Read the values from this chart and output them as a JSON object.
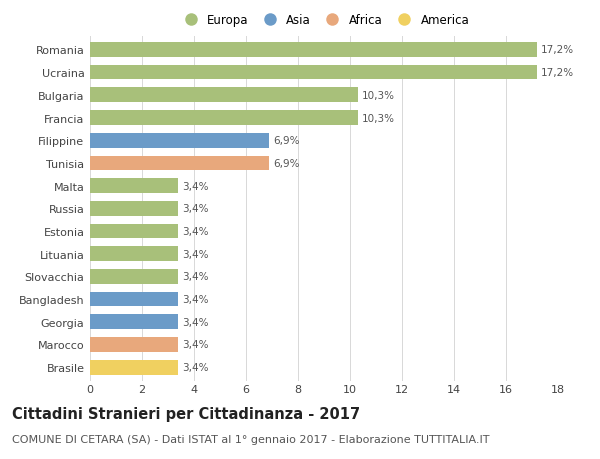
{
  "countries": [
    "Romania",
    "Ucraina",
    "Bulgaria",
    "Francia",
    "Filippine",
    "Tunisia",
    "Malta",
    "Russia",
    "Estonia",
    "Lituania",
    "Slovacchia",
    "Bangladesh",
    "Georgia",
    "Marocco",
    "Brasile"
  ],
  "values": [
    17.2,
    17.2,
    10.3,
    10.3,
    6.9,
    6.9,
    3.4,
    3.4,
    3.4,
    3.4,
    3.4,
    3.4,
    3.4,
    3.4,
    3.4
  ],
  "labels": [
    "17,2%",
    "17,2%",
    "10,3%",
    "10,3%",
    "6,9%",
    "6,9%",
    "3,4%",
    "3,4%",
    "3,4%",
    "3,4%",
    "3,4%",
    "3,4%",
    "3,4%",
    "3,4%",
    "3,4%"
  ],
  "continents": [
    "Europa",
    "Europa",
    "Europa",
    "Europa",
    "Asia",
    "Africa",
    "Europa",
    "Europa",
    "Europa",
    "Europa",
    "Europa",
    "Asia",
    "Asia",
    "Africa",
    "America"
  ],
  "continent_colors": {
    "Europa": "#a8c07a",
    "Asia": "#6b9bc8",
    "Africa": "#e8a87c",
    "America": "#f0d060"
  },
  "legend_order": [
    "Europa",
    "Asia",
    "Africa",
    "America"
  ],
  "title": "Cittadini Stranieri per Cittadinanza - 2017",
  "subtitle": "COMUNE DI CETARA (SA) - Dati ISTAT al 1° gennaio 2017 - Elaborazione TUTTITALIA.IT",
  "xlim": [
    0,
    18
  ],
  "xticks": [
    0,
    2,
    4,
    6,
    8,
    10,
    12,
    14,
    16,
    18
  ],
  "background_color": "#ffffff",
  "plot_bg_color": "#ffffff",
  "grid_color": "#d8d8d8",
  "bar_height": 0.65,
  "title_fontsize": 10.5,
  "subtitle_fontsize": 8,
  "label_fontsize": 7.5,
  "tick_fontsize": 8,
  "legend_fontsize": 8.5
}
